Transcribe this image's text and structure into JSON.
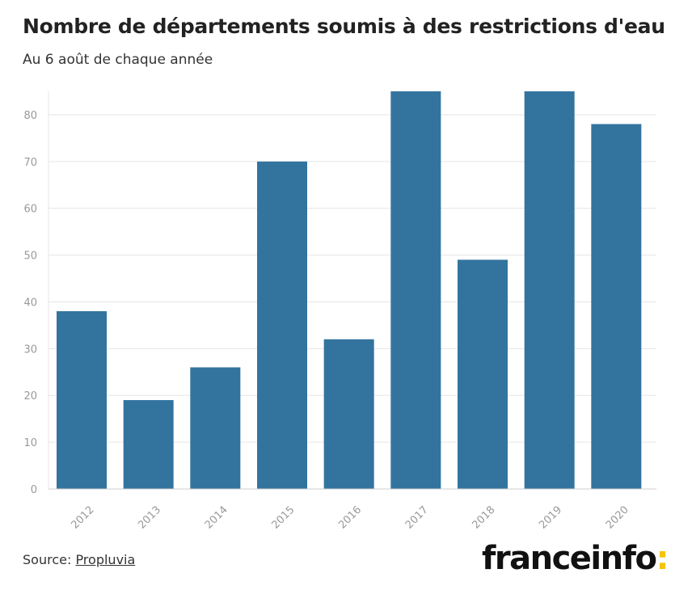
{
  "header": {
    "title": "Nombre de départements soumis à des restrictions d'eau",
    "subtitle": "Au 6 août de chaque année"
  },
  "footer": {
    "source_prefix": "Source: ",
    "source_link": "Propluvia",
    "logo_text": "franceinfo",
    "logo_suffix": ":"
  },
  "colors": {
    "bar": "#33749f",
    "grid": "#e6e6e6",
    "tick": "#999999",
    "logo_accent": "#f4c400"
  },
  "chart_data": {
    "type": "bar",
    "title": "Nombre de départements soumis à des restrictions d'eau",
    "subtitle": "Au 6 août de chaque année",
    "categories": [
      "2012",
      "2013",
      "2014",
      "2015",
      "2016",
      "2017",
      "2018",
      "2019",
      "2020"
    ],
    "values": [
      38,
      19,
      26,
      70,
      32,
      85,
      49,
      85,
      78
    ],
    "ylim": [
      0,
      85
    ],
    "yticks": [
      0,
      10,
      20,
      30,
      40,
      50,
      60,
      70,
      80
    ],
    "grid": true,
    "legend": "none",
    "xlabel": "",
    "ylabel": ""
  }
}
